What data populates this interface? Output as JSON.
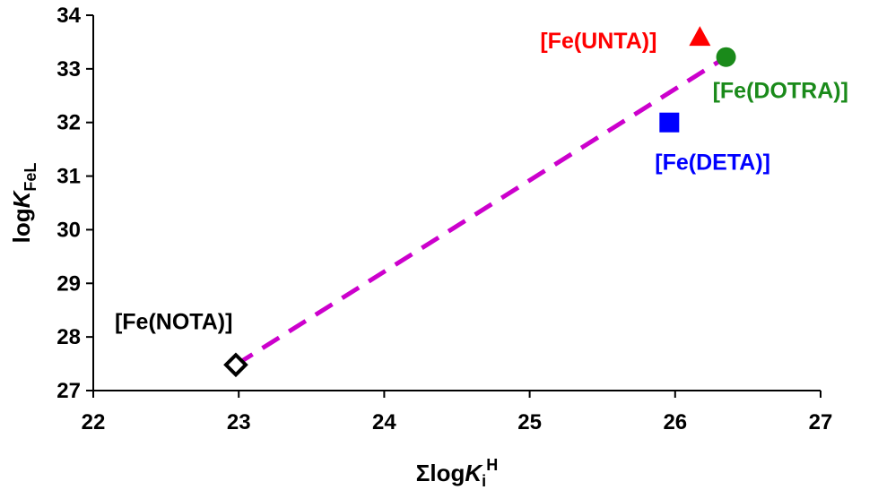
{
  "chart_data": {
    "type": "scatter",
    "title": "",
    "xlabel": {
      "prefix": "Σlog",
      "main": "K",
      "sub": "i",
      "sup": "H"
    },
    "ylabel": {
      "prefix": "log",
      "main": "K",
      "sub": "FeL"
    },
    "xlim": [
      22,
      27
    ],
    "ylim": [
      27,
      34
    ],
    "xticks": [
      22,
      23,
      24,
      25,
      26,
      27
    ],
    "yticks": [
      27,
      28,
      29,
      30,
      31,
      32,
      33,
      34
    ],
    "grid": false,
    "legend": "none",
    "points": [
      {
        "label": "[Fe(NOTA)]",
        "x": 22.98,
        "y": 27.48,
        "marker": "diamond",
        "color": "#000000",
        "fill": "#ffffff",
        "label_color": "#000000",
        "label_pos": "upper-left"
      },
      {
        "label": "[Fe(DETA)]",
        "x": 25.96,
        "y": 32.0,
        "marker": "square",
        "color": "#0000ff",
        "fill": "#0000ff",
        "label_color": "#0000ff",
        "label_pos": "below"
      },
      {
        "label": "[Fe(UNTA)]",
        "x": 26.17,
        "y": 33.58,
        "marker": "triangle",
        "color": "#ff0000",
        "fill": "#ff0000",
        "label_color": "#ff0000",
        "label_pos": "left"
      },
      {
        "label": "[Fe(DOTRA)]",
        "x": 26.35,
        "y": 33.22,
        "marker": "circle",
        "color": "#1a8a1a",
        "fill": "#1a8a1a",
        "label_color": "#1a8a1a",
        "label_pos": "below-right"
      }
    ],
    "trendline": {
      "x": [
        22.98,
        26.35
      ],
      "y": [
        27.48,
        33.22
      ],
      "color": "#cc00cc",
      "style": "dashed"
    }
  }
}
